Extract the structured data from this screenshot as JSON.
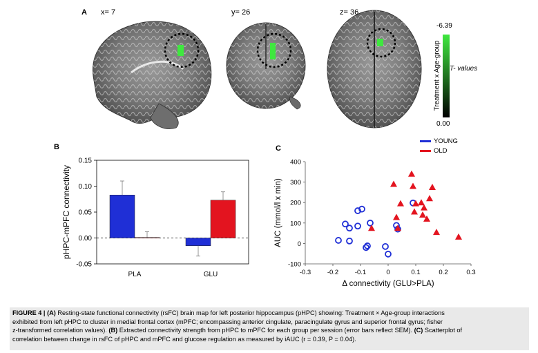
{
  "panel_a": {
    "letter": "A",
    "slice_labels": [
      "x= 7",
      "y= 26",
      "z= 36"
    ],
    "colorbar": {
      "max_label": "-6.39",
      "min_label": "0.00",
      "title": "Treatment x Age-group",
      "side_label": "T- values",
      "top_color": "#3fe83f",
      "bottom_color": "#000000"
    }
  },
  "panel_b": {
    "letter": "B"
  },
  "panel_c": {
    "letter": "C",
    "legend": [
      {
        "label": "YOUNG",
        "color": "#1f2fd6"
      },
      {
        "label": "OLD",
        "color": "#e3141f"
      }
    ]
  },
  "chart_data": [
    {
      "id": "B",
      "type": "bar",
      "categories": [
        "PLA",
        "GLU"
      ],
      "series": [
        {
          "name": "YOUNG",
          "color": "#1f2fd6",
          "values": [
            0.083,
            -0.015
          ],
          "errors": [
            0.027,
            0.02
          ]
        },
        {
          "name": "OLD",
          "color": "#e3141f",
          "values": [
            0.001,
            0.073
          ],
          "errors": [
            0.011,
            0.016
          ]
        }
      ],
      "ylabel": "pHPC-mPFC connectivity",
      "xlabel": "",
      "ylim": [
        -0.05,
        0.15
      ],
      "yticks": [
        "-0.05",
        "0.00",
        "0.05",
        "0.10",
        "0.15"
      ],
      "ytick_values": [
        -0.05,
        0.0,
        0.05,
        0.1,
        0.15
      ]
    },
    {
      "id": "C",
      "type": "scatter",
      "xlabel": "Δ connectivity (GLU>PLA)",
      "ylabel": "AUC (mmol/l x min)",
      "xlim": [
        -0.3,
        0.3
      ],
      "ylim": [
        -100,
        400
      ],
      "xticks": [
        "-0.3",
        "-0.2",
        "-0.1",
        "0",
        "0.1",
        "0.2",
        "0.3"
      ],
      "xtick_values": [
        -0.3,
        -0.2,
        -0.1,
        0,
        0.1,
        0.2,
        0.3
      ],
      "yticks": [
        "-100",
        "0",
        "100",
        "200",
        "300",
        "400"
      ],
      "ytick_values": [
        -100,
        0,
        100,
        200,
        300,
        400
      ],
      "series": [
        {
          "name": "YOUNG",
          "marker": "circle",
          "color": "#1f2fd6",
          "points": [
            [
              -0.18,
              15
            ],
            [
              -0.155,
              95
            ],
            [
              -0.14,
              75
            ],
            [
              -0.14,
              12
            ],
            [
              -0.11,
              85
            ],
            [
              -0.11,
              160
            ],
            [
              -0.095,
              168
            ],
            [
              -0.08,
              -20
            ],
            [
              -0.075,
              -12
            ],
            [
              -0.065,
              100
            ],
            [
              0.03,
              88
            ],
            [
              0.035,
              70
            ],
            [
              -0.01,
              -15
            ],
            [
              0.0,
              -52
            ],
            [
              0.09,
              198
            ]
          ]
        },
        {
          "name": "OLD",
          "marker": "triangle",
          "color": "#e3141f",
          "points": [
            [
              -0.06,
              75
            ],
            [
              0.02,
              290
            ],
            [
              0.03,
              128
            ],
            [
              0.035,
              75
            ],
            [
              0.045,
              195
            ],
            [
              0.085,
              340
            ],
            [
              0.09,
              280
            ],
            [
              0.095,
              155
            ],
            [
              0.1,
              195
            ],
            [
              0.12,
              200
            ],
            [
              0.125,
              140
            ],
            [
              0.13,
              175
            ],
            [
              0.14,
              120
            ],
            [
              0.15,
              220
            ],
            [
              0.16,
              275
            ],
            [
              0.175,
              55
            ],
            [
              0.255,
              32
            ]
          ]
        }
      ]
    }
  ],
  "caption": {
    "heading": "FIGURE 4 |",
    "lines": [
      {
        "bold": "(A)",
        "text": " Resting-state functional connectivity (rsFC) brain map for left posterior hippocampus (pHPC) showing: Treatment × Age-group interactions"
      },
      {
        "bold": "",
        "text": "exhibited from left pHPC to cluster in medial frontal cortex (mPFC; encompassing anterior cingulate, paracingulate gyrus and superior frontal gyrus; fisher"
      },
      {
        "bold": "",
        "text": "z-transformed correlation values). "
      },
      {
        "bold": "",
        "text": "correlation between change in rsFC of pHPC and mPFC and glucose regulation as measured by iAUC (r = 0.39, P = 0.04)."
      }
    ],
    "line3_b": "(B)",
    "line3_b_text": " Extracted connectivity strength from pHPC to mPFC for each group per session (error bars reflect SEM). ",
    "line3_c": "(C)",
    "line3_c_text": " Scatterplot of"
  }
}
